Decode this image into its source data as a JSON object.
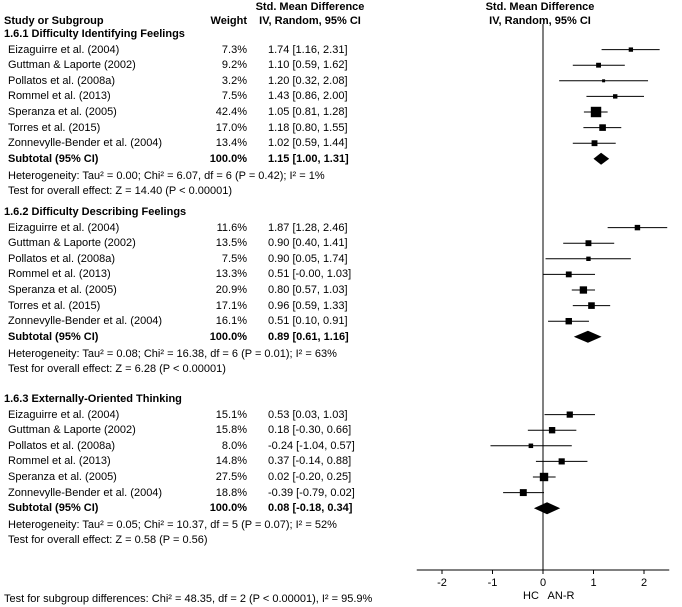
{
  "headers": {
    "study": "Study or Subgroup",
    "weight": "Weight",
    "smd_left_1": "Std. Mean Difference",
    "smd_left_2": "IV, Random, 95% CI",
    "smd_right_1": "Std. Mean Difference",
    "smd_right_2": "IV, Random, 95% CI"
  },
  "footer": {
    "subgroup_test": "Test for subgroup differences: Chi² = 48.35, df = 2 (P < 0.00001), I² = 95.9%"
  },
  "chart_data": {
    "type": "forest",
    "axis": {
      "xlim": [
        -2.5,
        2.5
      ],
      "ticks": [
        -2,
        -1,
        0,
        1,
        2
      ],
      "tick_labels": [
        "-2",
        "-1",
        "0",
        "1",
        "2"
      ],
      "favours_left": "HC",
      "favours_right": "AN-R"
    },
    "groups": [
      {
        "title": "1.6.1 Difficulty Identifying Feelings",
        "studies": [
          {
            "name": "Eizaguirre et al. (2004)",
            "weight": "7.3%",
            "ci_text": "1.74 [1.16, 2.31]",
            "est": 1.74,
            "lo": 1.16,
            "hi": 2.31,
            "w": 7.3
          },
          {
            "name": "Guttman & Laporte (2002)",
            "weight": "9.2%",
            "ci_text": "1.10 [0.59, 1.62]",
            "est": 1.1,
            "lo": 0.59,
            "hi": 1.62,
            "w": 9.2
          },
          {
            "name": "Pollatos et al. (2008a)",
            "weight": "3.2%",
            "ci_text": "1.20 [0.32, 2.08]",
            "est": 1.2,
            "lo": 0.32,
            "hi": 2.08,
            "w": 3.2
          },
          {
            "name": "Rommel et al. (2013)",
            "weight": "7.5%",
            "ci_text": "1.43 [0.86, 2.00]",
            "est": 1.43,
            "lo": 0.86,
            "hi": 2.0,
            "w": 7.5
          },
          {
            "name": "Speranza et al. (2005)",
            "weight": "42.4%",
            "ci_text": "1.05 [0.81, 1.28]",
            "est": 1.05,
            "lo": 0.81,
            "hi": 1.28,
            "w": 42.4
          },
          {
            "name": "Torres et al. (2015)",
            "weight": "17.0%",
            "ci_text": "1.18 [0.80, 1.55]",
            "est": 1.18,
            "lo": 0.8,
            "hi": 1.55,
            "w": 17.0
          },
          {
            "name": "Zonnevylle-Bender et al. (2004)",
            "weight": "13.4%",
            "ci_text": "1.02 [0.59, 1.44]",
            "est": 1.02,
            "lo": 0.59,
            "hi": 1.44,
            "w": 13.4
          }
        ],
        "subtotal": {
          "label": "Subtotal (95% CI)",
          "weight": "100.0%",
          "ci_text": "1.15 [1.00, 1.31]",
          "est": 1.15,
          "lo": 1.0,
          "hi": 1.31
        },
        "heterogeneity": "Heterogeneity: Tau² = 0.00; Chi² = 6.07, df = 6 (P = 0.42); I² = 1%",
        "overall": "Test for overall effect: Z = 14.40 (P < 0.00001)"
      },
      {
        "title": "1.6.2 Difficulty Describing Feelings",
        "studies": [
          {
            "name": "Eizaguirre et al. (2004)",
            "weight": "11.6%",
            "ci_text": "1.87 [1.28, 2.46]",
            "est": 1.87,
            "lo": 1.28,
            "hi": 2.46,
            "w": 11.6
          },
          {
            "name": "Guttman & Laporte (2002)",
            "weight": "13.5%",
            "ci_text": "0.90 [0.40, 1.41]",
            "est": 0.9,
            "lo": 0.4,
            "hi": 1.41,
            "w": 13.5
          },
          {
            "name": "Pollatos et al. (2008a)",
            "weight": "7.5%",
            "ci_text": "0.90 [0.05, 1.74]",
            "est": 0.9,
            "lo": 0.05,
            "hi": 1.74,
            "w": 7.5
          },
          {
            "name": "Rommel et al. (2013)",
            "weight": "13.3%",
            "ci_text": "0.51 [-0.00, 1.03]",
            "est": 0.51,
            "lo": -0.0,
            "hi": 1.03,
            "w": 13.3
          },
          {
            "name": "Speranza et al. (2005)",
            "weight": "20.9%",
            "ci_text": "0.80 [0.57, 1.03]",
            "est": 0.8,
            "lo": 0.57,
            "hi": 1.03,
            "w": 20.9
          },
          {
            "name": "Torres et al. (2015)",
            "weight": "17.1%",
            "ci_text": "0.96 [0.59, 1.33]",
            "est": 0.96,
            "lo": 0.59,
            "hi": 1.33,
            "w": 17.1
          },
          {
            "name": "Zonnevylle-Bender et al. (2004)",
            "weight": "16.1%",
            "ci_text": "0.51 [0.10, 0.91]",
            "est": 0.51,
            "lo": 0.1,
            "hi": 0.91,
            "w": 16.1
          }
        ],
        "subtotal": {
          "label": "Subtotal (95% CI)",
          "weight": "100.0%",
          "ci_text": "0.89 [0.61, 1.16]",
          "est": 0.89,
          "lo": 0.61,
          "hi": 1.16
        },
        "heterogeneity": "Heterogeneity: Tau² = 0.08; Chi² = 16.38, df = 6 (P = 0.01); I² = 63%",
        "overall": "Test for overall effect: Z = 6.28 (P < 0.00001)"
      },
      {
        "title": "1.6.3 Externally-Oriented Thinking",
        "studies": [
          {
            "name": "Eizaguirre et al. (2004)",
            "weight": "15.1%",
            "ci_text": "0.53 [0.03, 1.03]",
            "est": 0.53,
            "lo": 0.03,
            "hi": 1.03,
            "w": 15.1
          },
          {
            "name": "Guttman & Laporte (2002)",
            "weight": "15.8%",
            "ci_text": "0.18 [-0.30, 0.66]",
            "est": 0.18,
            "lo": -0.3,
            "hi": 0.66,
            "w": 15.8
          },
          {
            "name": "Pollatos et al. (2008a)",
            "weight": "8.0%",
            "ci_text": "-0.24 [-1.04, 0.57]",
            "est": -0.24,
            "lo": -1.04,
            "hi": 0.57,
            "w": 8.0
          },
          {
            "name": "Rommel et al. (2013)",
            "weight": "14.8%",
            "ci_text": "0.37 [-0.14, 0.88]",
            "est": 0.37,
            "lo": -0.14,
            "hi": 0.88,
            "w": 14.8
          },
          {
            "name": "Speranza et al. (2005)",
            "weight": "27.5%",
            "ci_text": "0.02 [-0.20, 0.25]",
            "est": 0.02,
            "lo": -0.2,
            "hi": 0.25,
            "w": 27.5
          },
          {
            "name": "Zonnevylle-Bender et al. (2004)",
            "weight": "18.8%",
            "ci_text": "-0.39 [-0.79, 0.02]",
            "est": -0.39,
            "lo": -0.79,
            "hi": 0.02,
            "w": 18.8
          }
        ],
        "subtotal": {
          "label": "Subtotal (95% CI)",
          "weight": "100.0%",
          "ci_text": "0.08 [-0.18, 0.34]",
          "est": 0.08,
          "lo": -0.18,
          "hi": 0.34
        },
        "heterogeneity": "Heterogeneity: Tau² = 0.05; Chi² = 10.37, df = 5 (P = 0.07); I² = 52%",
        "overall": "Test for overall effect: Z = 0.58 (P = 0.56)"
      }
    ]
  }
}
